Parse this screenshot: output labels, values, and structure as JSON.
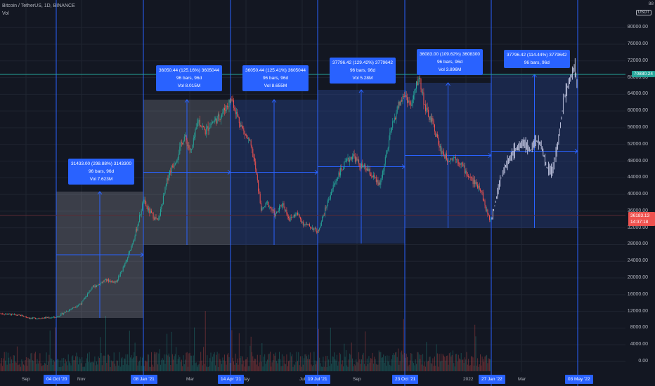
{
  "header": {
    "title": "Bitcoin / TetherUS, 1D, BINANCE",
    "vol_label": "Vol"
  },
  "price_axis": {
    "currency": "USDT",
    "top_cut_label": "88",
    "ticks": [
      "80000.00",
      "76000.00",
      "72000.00",
      "68000.00",
      "64000.00",
      "60000.00",
      "56000.00",
      "52000.00",
      "48000.00",
      "44000.00",
      "40000.00",
      "36000.00",
      "32000.00",
      "28000.00",
      "24000.00",
      "20000.00",
      "16000.00",
      "12000.00",
      "8000.00",
      "4000.00",
      "0.00"
    ],
    "last_high_tag": "70880.24",
    "current_price": "36183.13",
    "countdown": "14:37:18"
  },
  "time_axis": {
    "labels": [
      "Sep",
      "Nov",
      "Mar",
      "May",
      "Jul",
      "Sep",
      "2022",
      "Mar"
    ],
    "markers": [
      "04 Oct '20",
      "08 Jan '21",
      "14 Apr '21",
      "19 Jul '21",
      "23 Oct '21",
      "27 Jan '22",
      "03 May '22"
    ]
  },
  "projection_boxes": [
    {
      "line1": "31433.00 (298.88%) 3143300",
      "line2": "96 bars, 96d",
      "line3": "Vol 7.623M"
    },
    {
      "line1": "36050.44 (125.16%) 3605044",
      "line2": "96 bars, 96d",
      "line3": "Vol 8.015M"
    },
    {
      "line1": "36050.44 (125.41%) 3605044",
      "line2": "96 bars, 96d",
      "line3": "Vol 8.655M"
    },
    {
      "line1": "37796.42 (129.42%) 3779642",
      "line2": "96 bars, 96d",
      "line3": "Vol 5.28M"
    },
    {
      "line1": "36083.00 (109.62%) 3608300",
      "line2": "96 bars, 96d",
      "line3": "Vol 3.896M"
    },
    {
      "line1": "37796.42 (114.44%) 3779642",
      "line2": "96 bars, 96d",
      "line3": ""
    }
  ],
  "colors": {
    "background": "#131722",
    "grid": "#1f2430",
    "up": "#26a69a",
    "down": "#ef5350",
    "accent": "#2962ff",
    "ghost": "#c9cde8",
    "box": "#b2b5be",
    "box_blue": "#2a4a9e"
  }
}
